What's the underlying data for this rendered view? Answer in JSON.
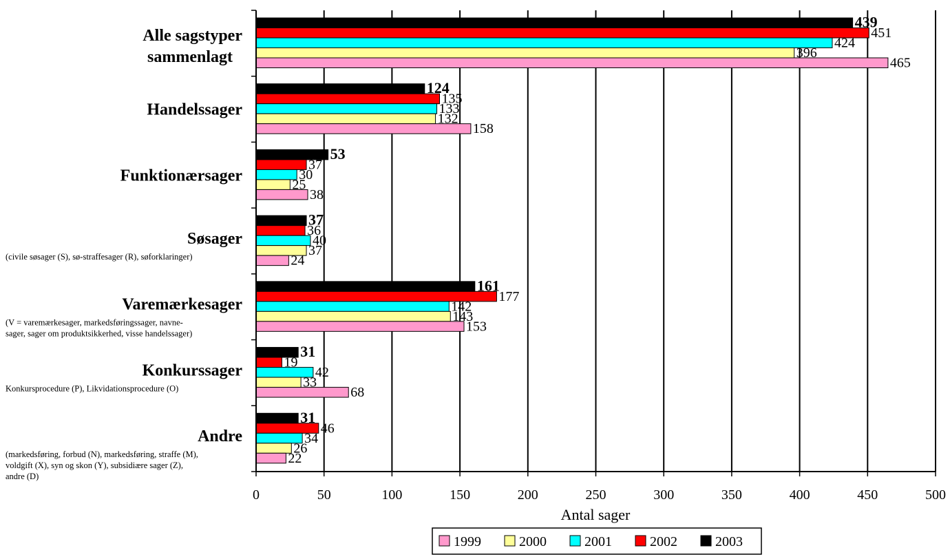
{
  "chart_data": {
    "type": "bar",
    "orientation": "horizontal",
    "categories": [
      {
        "label": [
          "Alle sagstyper",
          "sammenlagt"
        ],
        "sub": []
      },
      {
        "label": [
          "Handelssager"
        ],
        "sub": []
      },
      {
        "label": [
          "Funktionærsager"
        ],
        "sub": []
      },
      {
        "label": [
          "Søsager"
        ],
        "sub": [
          "(civile søsager (S), sø-straffesager (R), søforklaringer)"
        ]
      },
      {
        "label": [
          "Varemærkesager"
        ],
        "sub": [
          "(V = varemærkesager, markedsføringssager, navne-",
          "sager, sager om produktsikkerhed, visse handelssager)"
        ]
      },
      {
        "label": [
          "Konkurssager"
        ],
        "sub": [
          "Konkursprocedure (P), Likvidationsprocedure (O)"
        ]
      },
      {
        "label": [
          "Andre"
        ],
        "sub": [
          "(markedsføring, forbud (N), markedsføring, straffe (M),",
          "voldgift (X), syn og skon (Y), subsidiære sager (Z),",
          "andre (D)"
        ]
      }
    ],
    "series": [
      {
        "name": "2003",
        "color": "#000000",
        "values": [
          439,
          124,
          53,
          37,
          161,
          31,
          31
        ],
        "label_bold": true
      },
      {
        "name": "2002",
        "color": "#ff0000",
        "values": [
          451,
          135,
          37,
          36,
          177,
          19,
          46
        ],
        "label_bold": false
      },
      {
        "name": "2001",
        "color": "#00ffff",
        "values": [
          424,
          133,
          30,
          40,
          142,
          42,
          34
        ],
        "label_bold": false
      },
      {
        "name": "2000",
        "color": "#ffff99",
        "values": [
          396,
          132,
          25,
          37,
          143,
          33,
          26
        ],
        "label_bold": false
      },
      {
        "name": "1999",
        "color": "#ff99cc",
        "values": [
          465,
          158,
          38,
          24,
          153,
          68,
          22
        ],
        "label_bold": false
      }
    ],
    "legend_order": [
      "1999",
      "2000",
      "2001",
      "2002",
      "2003"
    ],
    "legend_position": "bottom",
    "xlabel": "Antal sager",
    "xlim": [
      0,
      500
    ],
    "xticks": [
      0,
      50,
      100,
      150,
      200,
      250,
      300,
      350,
      400,
      450,
      500
    ],
    "grid": "vertical"
  }
}
